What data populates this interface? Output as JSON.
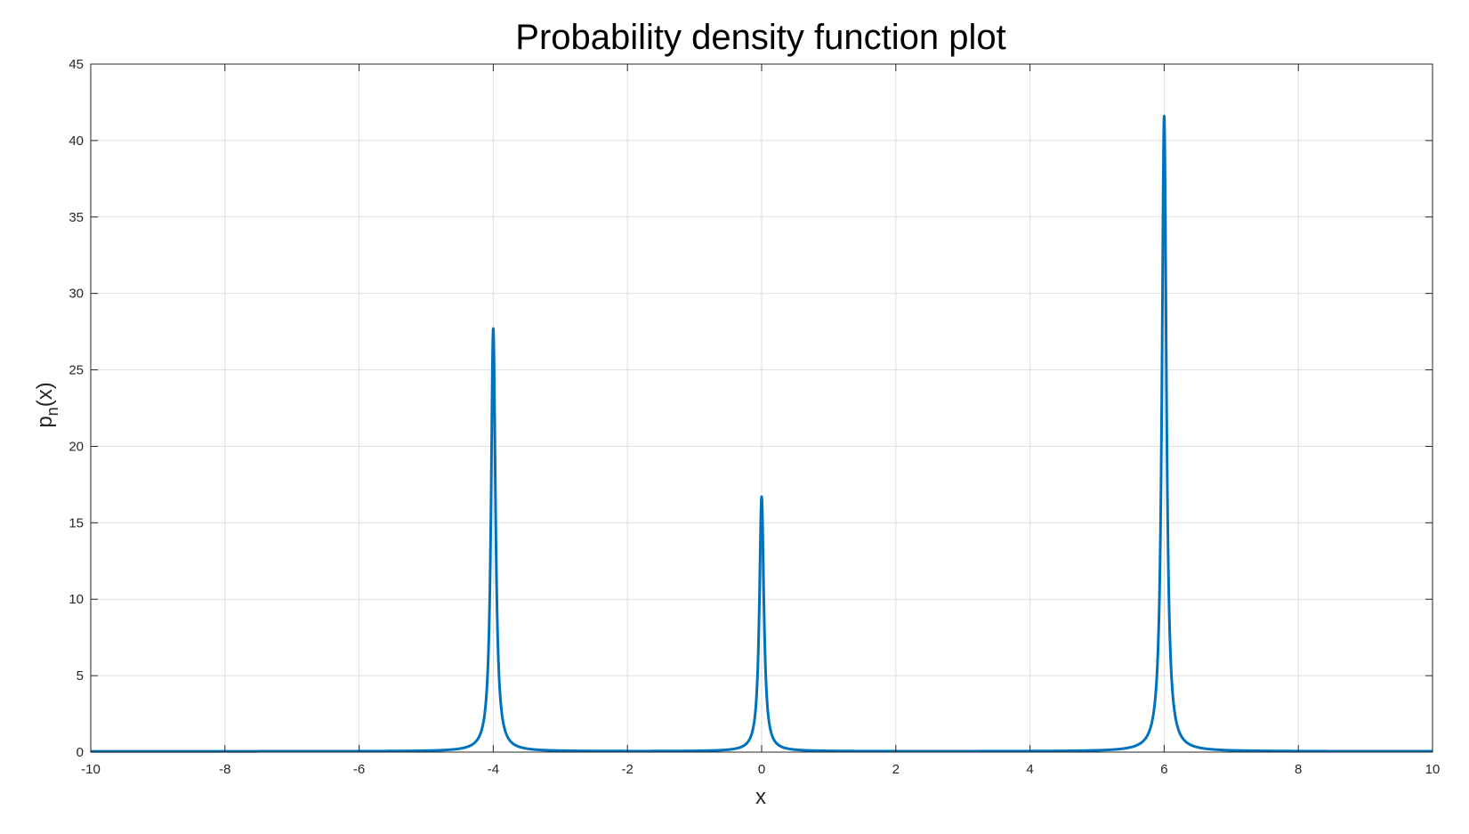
{
  "chart_data": {
    "type": "line",
    "title": "Probability density function plot",
    "xlabel": "x",
    "ylabel_main": "p",
    "ylabel_sub": "n",
    "ylabel_tail": "(x)",
    "xlim": [
      -10,
      10
    ],
    "ylim": [
      0,
      45
    ],
    "xticks": [
      -10,
      -8,
      -6,
      -4,
      -2,
      0,
      2,
      4,
      6,
      8,
      10
    ],
    "yticks": [
      0,
      5,
      10,
      15,
      20,
      25,
      30,
      35,
      40,
      45
    ],
    "grid": true,
    "series": [
      {
        "color": "#0072bd",
        "peaks": [
          {
            "x": -4,
            "y": 27.7
          },
          {
            "x": 0,
            "y": 16.7
          },
          {
            "x": 6,
            "y": 41.6
          }
        ],
        "baseline_y": 0.05
      }
    ]
  }
}
